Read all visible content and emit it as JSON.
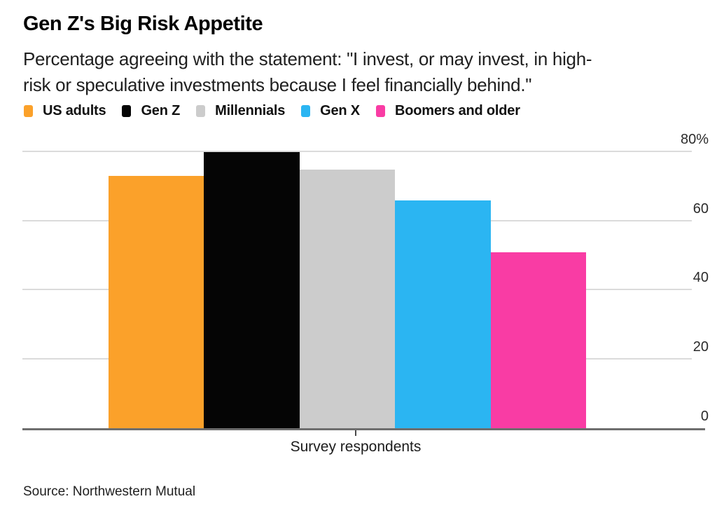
{
  "header": {
    "title": "Gen Z's Big Risk Appetite",
    "subtitle_lines": [
      "Percentage agreeing with the statement: \"I invest, or may invest, in high-",
      "risk or speculative investments because I feel financially behind.\""
    ]
  },
  "chart_data": {
    "type": "bar",
    "title": "Gen Z's Big Risk Appetite",
    "subtitle": "Percentage agreeing with the statement: \"I invest, or may invest, in high-risk or speculative investments because I feel financially behind.\"",
    "categories": [
      "US adults",
      "Gen Z",
      "Millennials",
      "Gen X",
      "Boomers and older"
    ],
    "values": [
      73,
      80,
      75,
      66,
      51
    ],
    "colors": [
      "#FBA12A",
      "#050505",
      "#CCCCCC",
      "#2BB5F2",
      "#F93CA4"
    ],
    "xlabel": "Survey respondents",
    "ylabel": "",
    "ylim": [
      0,
      80
    ],
    "yticks": [
      0,
      20,
      40,
      60,
      80
    ],
    "ytick_labels": [
      "0",
      "20",
      "40",
      "60",
      "80%"
    ],
    "grid": true,
    "legend_position": "top",
    "gridline_color": "#dbdbdb",
    "axis_color": "#6e6e6e"
  },
  "footer": {
    "source": "Source: Northwestern Mutual"
  }
}
